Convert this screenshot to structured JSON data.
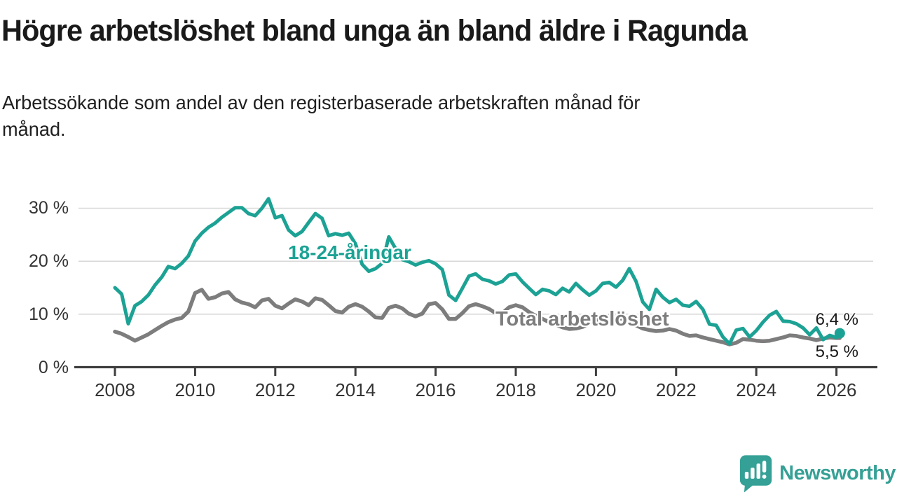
{
  "header": {
    "title": "Högre arbetslöshet bland unga än bland äldre i Ragunda",
    "subtitle_line1": "Arbetssökande som andel av den registerbaserade arbetskraften månad för",
    "subtitle_line2": "månad."
  },
  "chart_data": {
    "type": "line",
    "title": "Högre arbetslöshet bland unga än bland äldre i Ragunda",
    "xlabel": "",
    "ylabel": "Arbetssökande som andel av den registerbaserade arbetskraften",
    "grid": "horizontal",
    "legend_position": "inline-labels",
    "xlim": [
      2007.9,
      2026.4
    ],
    "ylim": [
      0,
      33
    ],
    "y_ticks": [
      {
        "value": 0,
        "label": "0 %"
      },
      {
        "value": 10,
        "label": "10 %"
      },
      {
        "value": 20,
        "label": "20 %"
      },
      {
        "value": 30,
        "label": "30 %"
      }
    ],
    "x_ticks": [
      {
        "value": 2008,
        "label": "2008"
      },
      {
        "value": 2010,
        "label": "2010"
      },
      {
        "value": 2012,
        "label": "2012"
      },
      {
        "value": 2014,
        "label": "2014"
      },
      {
        "value": 2016,
        "label": "2016"
      },
      {
        "value": 2018,
        "label": "2018"
      },
      {
        "value": 2020,
        "label": "2020"
      },
      {
        "value": 2022,
        "label": "2022"
      },
      {
        "value": 2024,
        "label": "2024"
      },
      {
        "value": 2026,
        "label": "2026"
      }
    ],
    "x": [
      2008.0,
      2008.167,
      2008.333,
      2008.5,
      2008.667,
      2008.833,
      2009.0,
      2009.167,
      2009.333,
      2009.5,
      2009.667,
      2009.833,
      2010.0,
      2010.167,
      2010.333,
      2010.5,
      2010.667,
      2010.833,
      2011.0,
      2011.167,
      2011.333,
      2011.5,
      2011.667,
      2011.833,
      2012.0,
      2012.167,
      2012.333,
      2012.5,
      2012.667,
      2012.833,
      2013.0,
      2013.167,
      2013.333,
      2013.5,
      2013.667,
      2013.833,
      2014.0,
      2014.167,
      2014.333,
      2014.5,
      2014.667,
      2014.833,
      2015.0,
      2015.167,
      2015.333,
      2015.5,
      2015.667,
      2015.833,
      2016.0,
      2016.167,
      2016.333,
      2016.5,
      2016.667,
      2016.833,
      2017.0,
      2017.167,
      2017.333,
      2017.5,
      2017.667,
      2017.833,
      2018.0,
      2018.167,
      2018.333,
      2018.5,
      2018.667,
      2018.833,
      2019.0,
      2019.167,
      2019.333,
      2019.5,
      2019.667,
      2019.833,
      2020.0,
      2020.167,
      2020.333,
      2020.5,
      2020.667,
      2020.833,
      2021.0,
      2021.167,
      2021.333,
      2021.5,
      2021.667,
      2021.833,
      2022.0,
      2022.167,
      2022.333,
      2022.5,
      2022.667,
      2022.833,
      2023.0,
      2023.167,
      2023.333,
      2023.5,
      2023.667,
      2023.833,
      2024.0,
      2024.167,
      2024.333,
      2024.5,
      2024.667,
      2024.833,
      2025.0,
      2025.167,
      2025.333,
      2025.5,
      2025.667,
      2025.833,
      2026.0,
      2026.083
    ],
    "series": [
      {
        "name": "18-24-åringar",
        "color": "#1CA294",
        "end_label": "6,4 %",
        "end_value": 6.4,
        "end_dot": true,
        "values": [
          15.0,
          13.8,
          8.2,
          11.6,
          12.4,
          13.6,
          15.5,
          17.0,
          19.0,
          18.6,
          19.6,
          21.0,
          23.8,
          25.3,
          26.4,
          27.2,
          28.3,
          29.2,
          30.1,
          30.1,
          29.0,
          28.6,
          30.0,
          31.8,
          28.2,
          28.6,
          25.9,
          24.8,
          25.6,
          27.3,
          29.0,
          28.1,
          24.8,
          25.2,
          24.9,
          25.3,
          23.3,
          19.4,
          18.1,
          18.6,
          19.6,
          24.6,
          22.4,
          20.3,
          19.9,
          19.3,
          19.8,
          20.1,
          19.5,
          18.4,
          13.6,
          12.6,
          14.9,
          17.2,
          17.6,
          16.6,
          16.3,
          15.7,
          16.2,
          17.4,
          17.6,
          16.1,
          14.9,
          13.7,
          14.7,
          14.4,
          13.7,
          14.9,
          14.2,
          15.8,
          14.6,
          13.6,
          14.4,
          15.8,
          16.0,
          15.1,
          16.4,
          18.6,
          16.2,
          12.3,
          10.9,
          14.7,
          13.2,
          12.2,
          12.8,
          11.7,
          11.5,
          12.4,
          10.9,
          8.1,
          7.9,
          5.7,
          4.4,
          7.0,
          7.3,
          5.7,
          6.9,
          8.5,
          9.8,
          10.5,
          8.7,
          8.6,
          8.2,
          7.4,
          6.1,
          7.4,
          5.2,
          6.0,
          5.6,
          6.4
        ]
      },
      {
        "name": "Total arbetslöshet",
        "color": "#7D7D7D",
        "end_label": "5,5 %",
        "end_value": 5.5,
        "end_dot": false,
        "values": [
          6.7,
          6.3,
          5.7,
          5.0,
          5.6,
          6.2,
          7.0,
          7.8,
          8.5,
          9.0,
          9.3,
          10.5,
          14.0,
          14.6,
          12.9,
          13.2,
          13.9,
          14.2,
          12.8,
          12.2,
          11.9,
          11.3,
          12.6,
          12.9,
          11.6,
          11.1,
          12.0,
          12.8,
          12.4,
          11.7,
          13.0,
          12.7,
          11.7,
          10.6,
          10.3,
          11.4,
          11.9,
          11.4,
          10.5,
          9.4,
          9.3,
          11.2,
          11.6,
          11.1,
          10.1,
          9.6,
          10.1,
          11.9,
          12.1,
          10.9,
          9.1,
          9.1,
          10.2,
          11.5,
          11.9,
          11.5,
          11.0,
          10.2,
          10.2,
          11.3,
          11.7,
          11.3,
          10.4,
          9.7,
          9.1,
          8.5,
          8.0,
          7.5,
          7.2,
          7.3,
          7.6,
          8.2,
          8.8,
          9.4,
          9.6,
          9.4,
          9.1,
          8.5,
          7.9,
          7.3,
          7.0,
          6.8,
          6.9,
          7.2,
          6.9,
          6.3,
          5.9,
          6.0,
          5.6,
          5.3,
          5.0,
          4.7,
          4.3,
          4.6,
          5.3,
          5.2,
          5.0,
          4.9,
          5.0,
          5.3,
          5.6,
          6.0,
          5.9,
          5.6,
          5.4,
          5.1,
          5.4,
          5.6,
          5.5,
          5.5
        ]
      }
    ],
    "colors": {
      "grid": "#d9d9d9",
      "axis": "#3f3f3f",
      "tick_text": "#333333"
    }
  },
  "branding": {
    "logo_text": "Newsworthy",
    "logo_color": "#35A095"
  }
}
